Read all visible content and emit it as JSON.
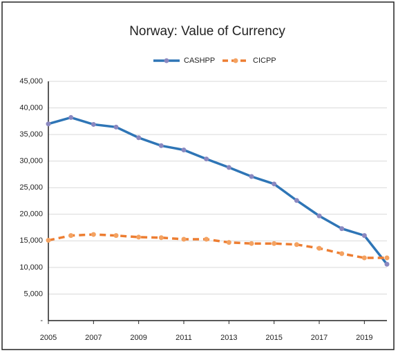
{
  "chart_data": {
    "type": "line",
    "title": "Norway: Value of Currency",
    "x": [
      2005,
      2006,
      2007,
      2008,
      2009,
      2010,
      2011,
      2012,
      2013,
      2014,
      2015,
      2016,
      2017,
      2018,
      2019,
      2020
    ],
    "series": [
      {
        "name": "CASHPP",
        "color": "#2e75b6",
        "marker_color": "#8a88c0",
        "dashed": false,
        "values": [
          37000,
          38200,
          36900,
          36400,
          34400,
          32900,
          32100,
          30400,
          28800,
          27100,
          25700,
          22600,
          19700,
          17300,
          16000,
          10600
        ]
      },
      {
        "name": "CICPP",
        "color": "#ed7d31",
        "marker_color": "#f4a261",
        "dashed": true,
        "values": [
          15100,
          16000,
          16200,
          16000,
          15700,
          15600,
          15300,
          15300,
          14700,
          14500,
          14500,
          14300,
          13600,
          12600,
          11800,
          11800
        ]
      }
    ],
    "xlim": [
      2005,
      2020
    ],
    "xticks": [
      2005,
      2007,
      2009,
      2011,
      2013,
      2015,
      2017,
      2019
    ],
    "ylim": [
      0,
      45000
    ],
    "yticks": [
      {
        "value": 0,
        "label": "-"
      },
      {
        "value": 5000,
        "label": "5,000"
      },
      {
        "value": 10000,
        "label": "10,000"
      },
      {
        "value": 15000,
        "label": "15,000"
      },
      {
        "value": 20000,
        "label": "20,000"
      },
      {
        "value": 25000,
        "label": "25,000"
      },
      {
        "value": 30000,
        "label": "30,000"
      },
      {
        "value": 35000,
        "label": "35,000"
      },
      {
        "value": 40000,
        "label": "40,000"
      },
      {
        "value": 45000,
        "label": "45,000"
      }
    ],
    "grid": true,
    "legend": "top"
  }
}
